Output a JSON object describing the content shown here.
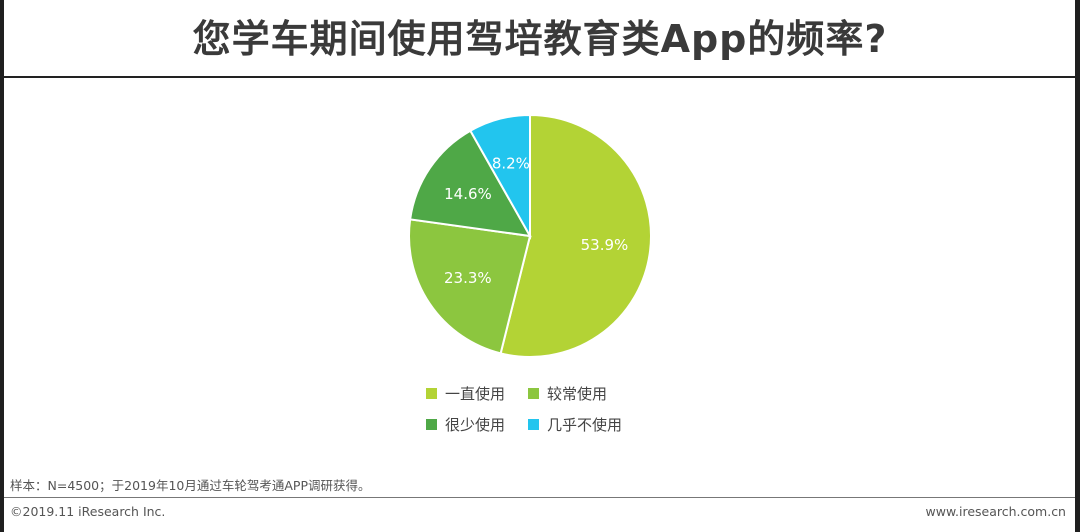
{
  "title": "您学车期间使用驾培教育类App的频率?",
  "chart_data": {
    "type": "pie",
    "title": "",
    "categories": [
      "一直使用",
      "较常使用",
      "很少使用",
      "几乎不使用"
    ],
    "values": [
      53.9,
      23.3,
      14.6,
      8.2
    ],
    "value_labels": [
      "53.9%",
      "23.3%",
      "14.6%",
      "8.2%"
    ],
    "unit": "%",
    "colors": [
      "#b3d335",
      "#8cc63f",
      "#4fa847",
      "#22c5ee"
    ],
    "legend_position": "bottom"
  },
  "note": "样本：N=4500；于2019年10月通过车轮驾考通APP调研获得。",
  "copyright": "©2019.11 iResearch Inc.",
  "website": "www.iresearch.com.cn"
}
